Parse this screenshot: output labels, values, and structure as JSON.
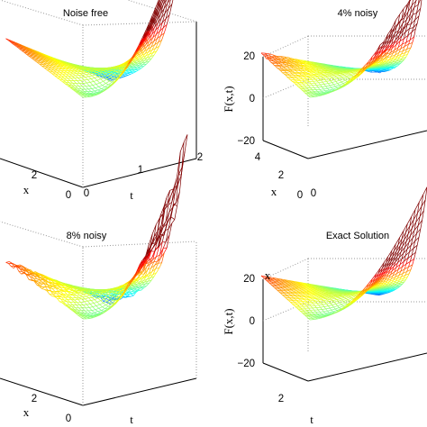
{
  "chart_data": [
    {
      "type": "surface",
      "title": "Noise free",
      "xlabel": "x",
      "tlabel": "t",
      "zlabel": "",
      "x_ticks": [
        "0",
        "2"
      ],
      "t_ticks": [
        "0",
        "1",
        "2"
      ],
      "z_ticks": [],
      "x_range": [
        0,
        4.5
      ],
      "t_range": [
        0,
        2
      ],
      "z_range": [
        -20,
        20
      ],
      "noise_level": 0,
      "colormap": "jet"
    },
    {
      "type": "surface",
      "title": "4% noisy",
      "xlabel": "x",
      "tlabel": "",
      "zlabel": "F(x,t)",
      "x_ticks": [
        "0",
        "2",
        "4"
      ],
      "t_ticks": [
        "0"
      ],
      "z_ticks": [
        "20",
        "0",
        "−20"
      ],
      "x_range": [
        0,
        4.5
      ],
      "t_range": [
        0,
        2
      ],
      "z_range": [
        -20,
        20
      ],
      "noise_level": 0.04,
      "colormap": "jet"
    },
    {
      "type": "surface",
      "title": "8% noisy",
      "xlabel": "x",
      "tlabel": "t",
      "zlabel": "",
      "x_ticks": [
        "0",
        "2"
      ],
      "t_ticks": [],
      "z_ticks": [],
      "x_range": [
        0,
        4.5
      ],
      "t_range": [
        0,
        2
      ],
      "z_range": [
        -20,
        20
      ],
      "noise_level": 0.08,
      "colormap": "jet"
    },
    {
      "type": "surface",
      "title": "Exact Solution",
      "xlabel": "x",
      "tlabel": "t",
      "zlabel": "F(x,t)",
      "x_ticks": [
        "2"
      ],
      "t_ticks": [],
      "z_ticks": [
        "20",
        "0",
        "−20"
      ],
      "x_range": [
        0,
        4.5
      ],
      "t_range": [
        0,
        2
      ],
      "z_range": [
        -20,
        20
      ],
      "noise_level": 0,
      "colormap": "jet"
    }
  ]
}
